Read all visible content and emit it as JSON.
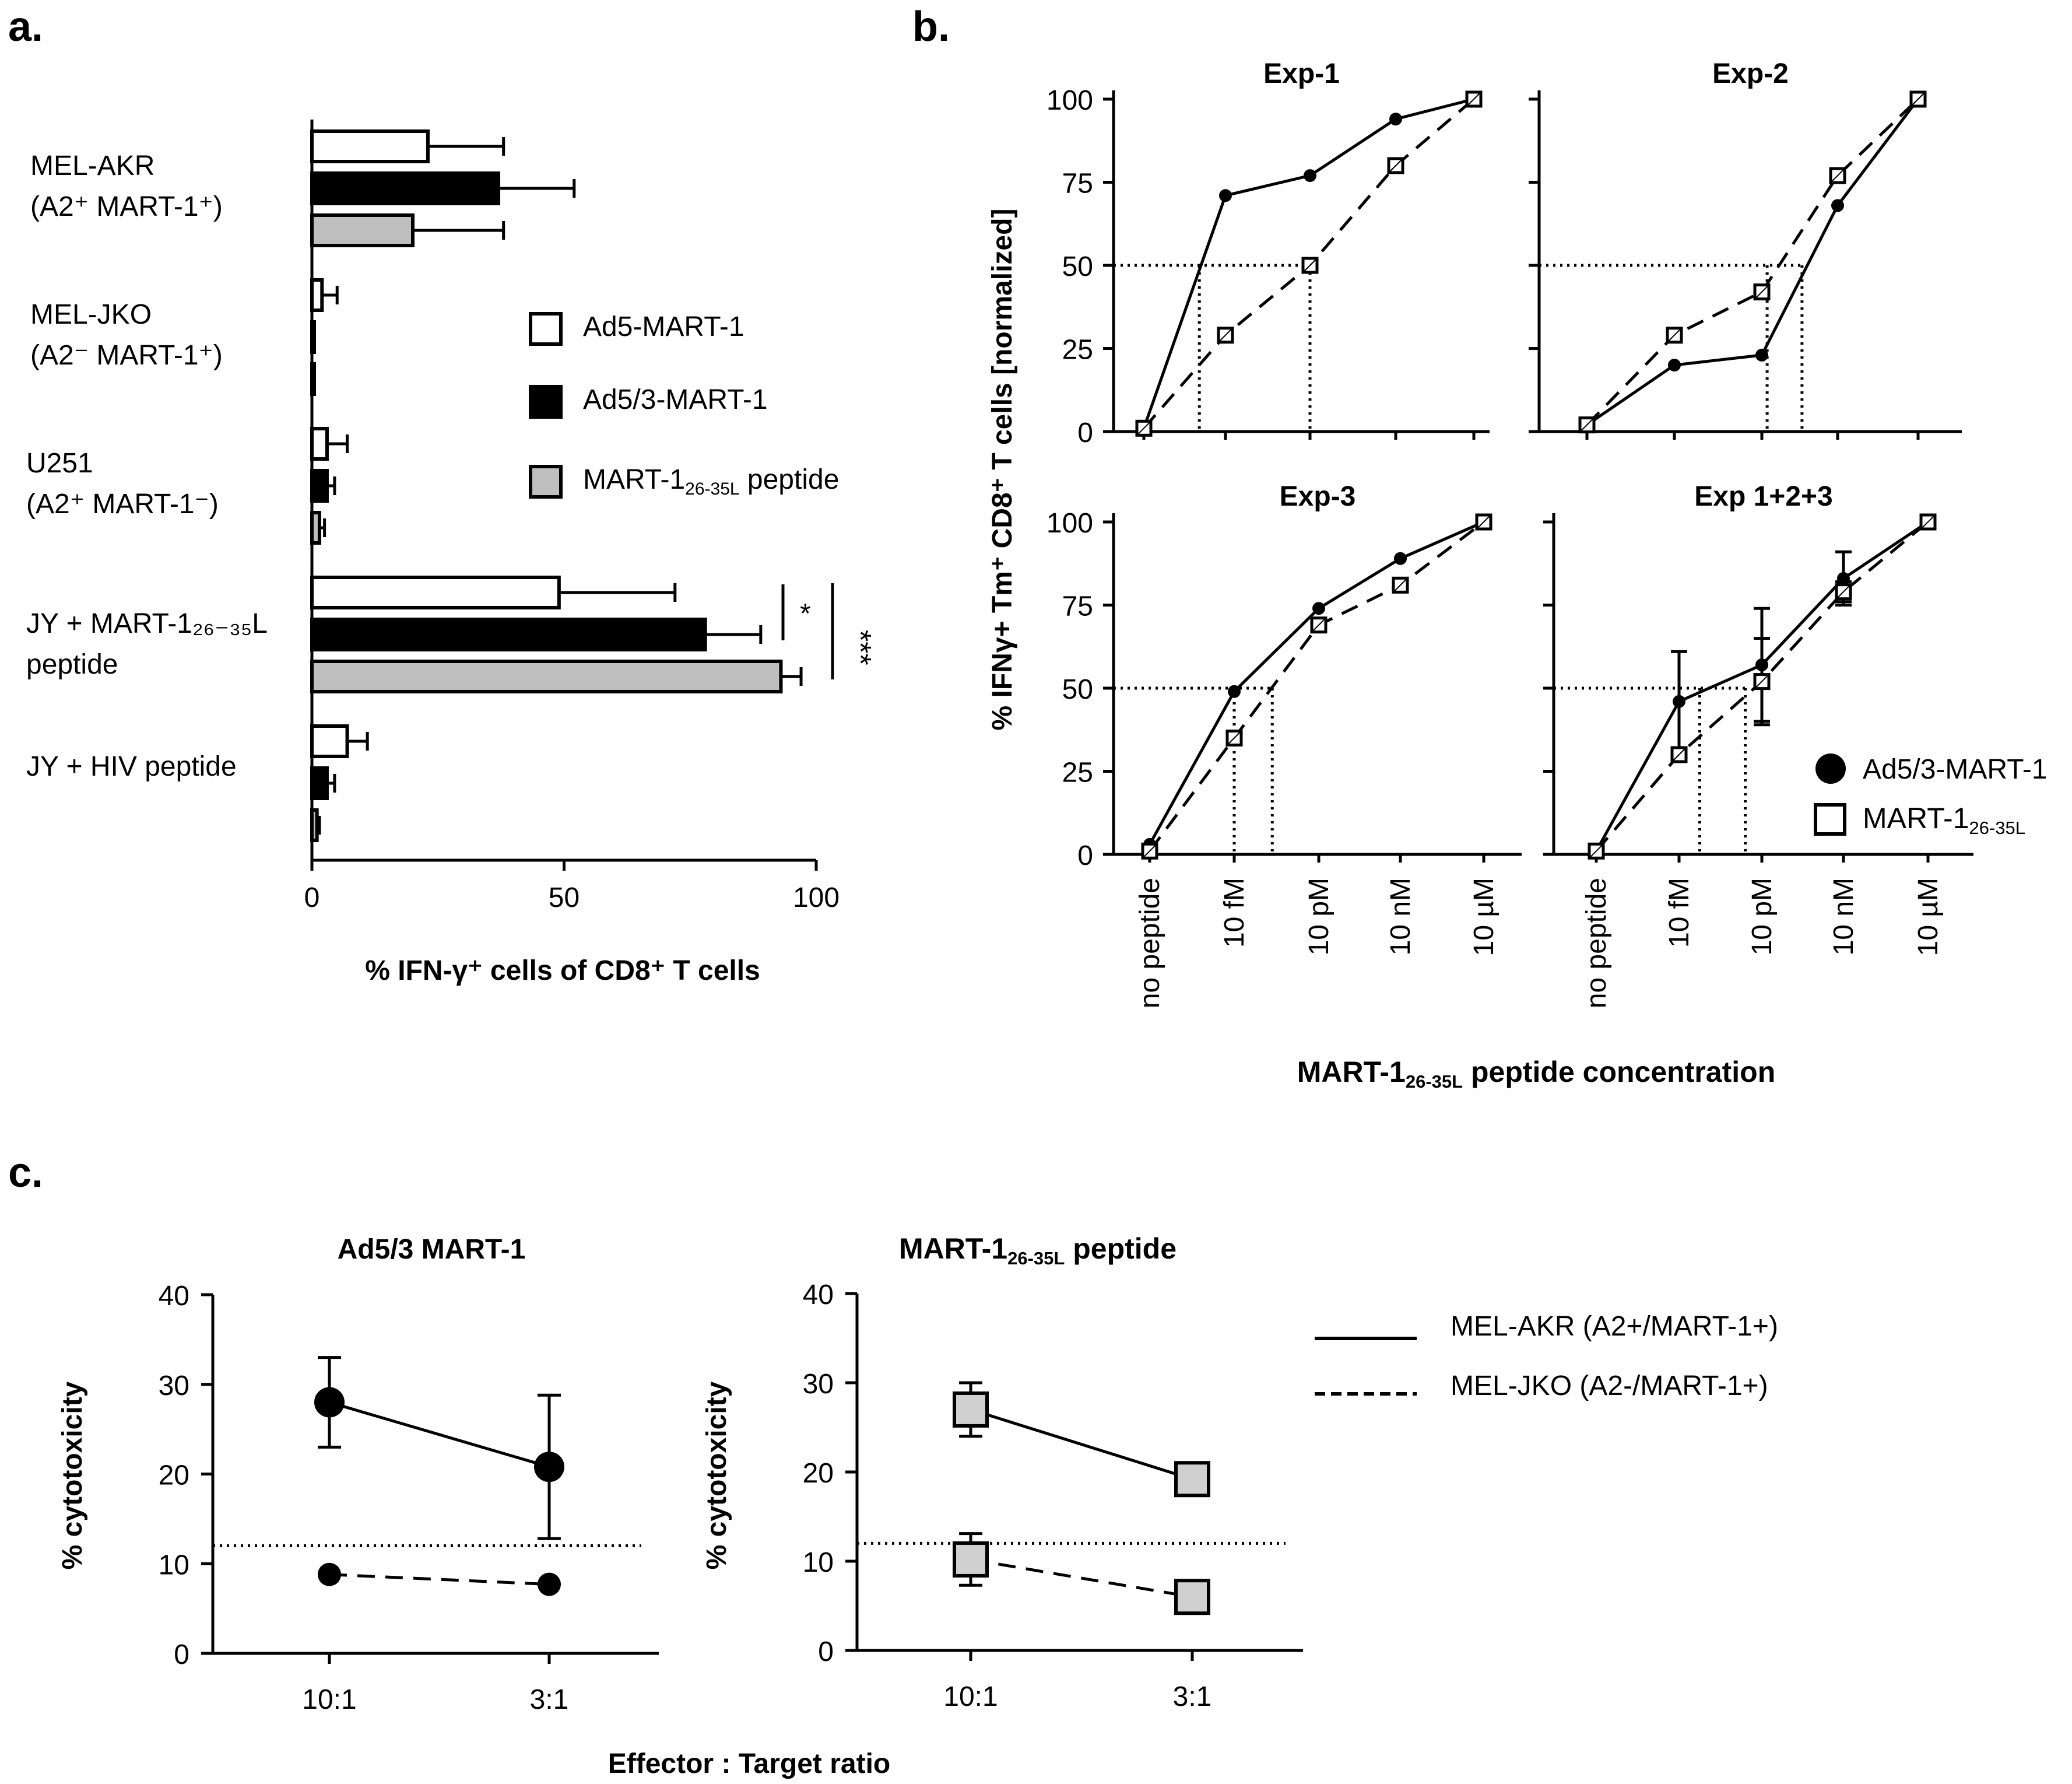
{
  "panels": {
    "a": "a.",
    "b": "b.",
    "c": "c."
  },
  "chart_data": [
    {
      "id": "a",
      "type": "bar",
      "orientation": "horizontal",
      "title": "",
      "xlabel": "% IFN-γ⁺ cells of CD8⁺ T cells",
      "xlim": [
        0,
        100
      ],
      "xticks": [
        "0",
        "50",
        "100"
      ],
      "categories": [
        [
          "MEL-AKR",
          "(A2⁺ MART-1⁺)"
        ],
        [
          "MEL-JKO",
          "(A2⁻ MART-1⁺)"
        ],
        [
          "U251",
          "(A2⁺ MART-1⁻)"
        ],
        [
          "JY + MART-1₂₆₋₃₅L",
          "peptide"
        ],
        [
          "JY + HIV peptide"
        ]
      ],
      "series": [
        {
          "name": "Ad5-MART-1",
          "color": "#ffffff",
          "values": [
            23,
            2,
            3,
            49,
            7
          ],
          "errors": [
            15,
            3,
            4,
            23,
            4
          ]
        },
        {
          "name": "Ad5/3-MART-1",
          "color": "#000000",
          "values": [
            37,
            0.3,
            3,
            78,
            3
          ],
          "errors": [
            15,
            0.2,
            1.5,
            11,
            1.5
          ]
        },
        {
          "name": "MART-1₂₆₋₃₅L peptide",
          "color": "#bfbfbf",
          "values": [
            20,
            0.3,
            1.5,
            93,
            1
          ],
          "errors": [
            18,
            0.2,
            1,
            4,
            0.5
          ]
        }
      ],
      "legend": [
        "Ad5-MART-1",
        "Ad5/3-MART-1",
        "MART-1"
      ],
      "legend_sub": "26-35L",
      "legend_tail": " peptide",
      "significance": [
        "*",
        "***"
      ]
    },
    {
      "id": "b",
      "type": "line",
      "ylabel": "% IFNγ+  Tm⁺ CD8⁺ T cells [normalized]",
      "xlabel_main": "MART-1",
      "xlabel_sub": "26-35L",
      "xlabel_tail": " peptide concentration",
      "ylim": [
        0,
        100
      ],
      "yticks": [
        "0",
        "25",
        "50",
        "75",
        "100"
      ],
      "categories": [
        "no peptide",
        "10 fM",
        "10 pM",
        "10 nM",
        "10 µM"
      ],
      "reference_y": 50,
      "legend": [
        "Ad5/3-MART-1",
        "MART-1"
      ],
      "legend_sub": "26-35L",
      "subplots": [
        {
          "title": "Exp-1",
          "series": [
            {
              "name": "Ad5/3-MART-1",
              "style": "solid",
              "values": [
                1,
                71,
                77,
                94,
                100
              ]
            },
            {
              "name": "MART-1 26-35L",
              "style": "dashed",
              "values": [
                1,
                29,
                50,
                80,
                100
              ]
            }
          ],
          "ec50_x": [
            0.68,
            2.0
          ]
        },
        {
          "title": "Exp-2",
          "series": [
            {
              "name": "Ad5/3-MART-1",
              "style": "solid",
              "values": [
                2,
                20,
                23,
                68,
                100
              ]
            },
            {
              "name": "MART-1 26-35L",
              "style": "dashed",
              "values": [
                2,
                29,
                42,
                77,
                100
              ]
            }
          ],
          "ec50_x": [
            2.07,
            2.53
          ]
        },
        {
          "title": "Exp-3",
          "series": [
            {
              "name": "Ad5/3-MART-1",
              "style": "solid",
              "values": [
                3,
                49,
                74,
                89,
                100
              ]
            },
            {
              "name": "MART-1 26-35L",
              "style": "dashed",
              "values": [
                1,
                35,
                69,
                81,
                100
              ]
            }
          ],
          "ec50_x": [
            1.0,
            1.45
          ]
        },
        {
          "title": "Exp 1+2+3",
          "series": [
            {
              "name": "Ad5/3-MART-1",
              "style": "solid",
              "values": [
                1,
                46,
                57,
                83,
                100
              ],
              "errors": [
                0,
                15,
                17,
                8,
                0
              ]
            },
            {
              "name": "MART-1 26-35L",
              "style": "dashed",
              "values": [
                1,
                30,
                52,
                79,
                100
              ],
              "errors": [
                0,
                0,
                13,
                3,
                0
              ]
            }
          ],
          "ec50_x": [
            1.25,
            1.8
          ]
        }
      ]
    },
    {
      "id": "c",
      "type": "line",
      "xlabel": "Effector : Target ratio",
      "ylabel": "% cytotoxicity",
      "ylim": [
        0,
        40
      ],
      "yticks": [
        "0",
        "10",
        "20",
        "30",
        "40"
      ],
      "categories": [
        "10:1",
        "3:1"
      ],
      "reference_y": 12,
      "legend": [
        "MEL-AKR (A2+/MART-1+)",
        "MEL-JKO (A2-/MART-1+)"
      ],
      "subplots": [
        {
          "title": "Ad5/3 MART-1",
          "title_sub": "",
          "title_tail": "",
          "marker": "circle",
          "color": "#000000",
          "series": [
            {
              "name": "MEL-AKR (A2+/MART-1+)",
              "style": "solid",
              "values": [
                28,
                20.8
              ],
              "errors": [
                5,
                8
              ]
            },
            {
              "name": "MEL-JKO (A2-/MART-1+)",
              "style": "dashed",
              "values": [
                8.8,
                7.7
              ],
              "errors": [
                0,
                0
              ]
            }
          ]
        },
        {
          "title": "MART-1",
          "title_sub": "26-35L",
          "title_tail": " peptide",
          "marker": "square",
          "color": "#d0d0d0",
          "series": [
            {
              "name": "MEL-AKR (A2+/MART-1+)",
              "style": "solid",
              "values": [
                27,
                19.2
              ],
              "errors": [
                3,
                0.8
              ]
            },
            {
              "name": "MEL-JKO (A2-/MART-1+)",
              "style": "dashed",
              "values": [
                10.2,
                6
              ],
              "errors": [
                2.9,
                0
              ]
            }
          ]
        }
      ]
    }
  ]
}
